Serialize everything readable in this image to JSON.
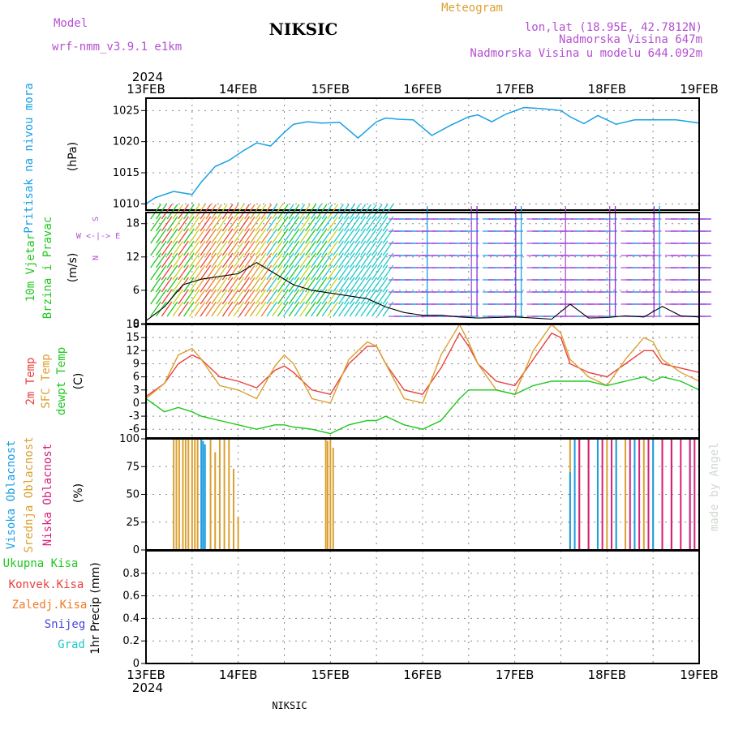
{
  "header": {
    "model_label": "Model",
    "model_value": "wrf-nmm_v3.9.1  e1km",
    "station": "NIKSIC",
    "meteogram": "Meteogram",
    "coords": "lon,lat (18.95E, 42.7812N)",
    "altitude": "Nadmorska Visina 647m",
    "model_altitude": "Nadmorska Visina u modelu 644.092m",
    "footer_station": "NIKSIC",
    "credit": "made by Angel",
    "year": "2024"
  },
  "time_axis": {
    "labels": [
      "13FEB",
      "14FEB",
      "15FEB",
      "16FEB",
      "17FEB",
      "18FEB",
      "19FEB"
    ]
  },
  "colors": {
    "pressure": "#1aa0e6",
    "temp2m": "#e8413c",
    "sfc_temp": "#dba030",
    "dewpt": "#1ec81e",
    "high_cloud": "#1aa0e6",
    "mid_cloud": "#dba030",
    "low_cloud": "#d8207a",
    "purple": "#b450d2",
    "rain_total": "#1ec81e",
    "rain_conv": "#e8413c",
    "rain_frozen": "#f07a28",
    "snow": "#4646dc",
    "hail": "#1ec8c8"
  },
  "panel_labels": {
    "pressure": [
      "Pritisak na nivou mora"
    ],
    "pressure_unit": "(hPa)",
    "wind": [
      "10m Vjetar",
      "Brzina i Pravac"
    ],
    "wind_unit": "(m/s)",
    "compass": [
      "S",
      "W  <-|->  E",
      "N"
    ],
    "temp": [
      "2m Temp",
      "SFC Temp",
      "dewpt Temp"
    ],
    "temp_unit": "(C)",
    "cloud": [
      "Visoka Oblacnost",
      "Srednja Oblacnost",
      "Niska Oblacnost"
    ],
    "cloud_unit": "(%)",
    "precip": [
      "Ukupna Kisa",
      "Konvek.Kisa",
      "Zaledj.Kisa",
      "Snijeg",
      "Grad"
    ],
    "precip_unit": "1hr Precip (mm)"
  },
  "chart_data": [
    {
      "type": "line",
      "name": "pressure",
      "ylim": [
        1009,
        1027
      ],
      "yticks": [
        1010,
        1015,
        1020,
        1025
      ],
      "x_days": [
        0,
        0.1,
        0.3,
        0.5,
        0.6,
        0.75,
        0.9,
        1.05,
        1.2,
        1.35,
        1.5,
        1.6,
        1.75,
        1.9,
        2.1,
        2.3,
        2.5,
        2.6,
        2.75,
        2.9,
        3.1,
        3.3,
        3.5,
        3.6,
        3.75,
        3.9,
        4.1,
        4.3,
        4.5,
        4.6,
        4.75,
        4.9,
        5.1,
        5.3,
        5.5,
        5.6,
        5.75,
        5.9,
        6.0
      ],
      "values": [
        1010,
        1011,
        1012,
        1011.5,
        1013.5,
        1016,
        1017,
        1018.5,
        1019.8,
        1019.3,
        1021.5,
        1022.8,
        1023.2,
        1023,
        1023.1,
        1020.6,
        1023.2,
        1023.8,
        1023.6,
        1023.5,
        1021,
        1022.6,
        1024,
        1024.3,
        1023.2,
        1024.4,
        1025.5,
        1025.3,
        1025,
        1024,
        1022.9,
        1024.2,
        1022.8,
        1023.5,
        1023.5,
        1023.5,
        1023.5,
        1023.2,
        1023
      ]
    },
    {
      "type": "line",
      "name": "wind_speed",
      "ylim": [
        0,
        20
      ],
      "yticks": [
        0,
        6,
        12,
        18
      ],
      "x_days": [
        0,
        0.2,
        0.4,
        0.6,
        0.8,
        1.0,
        1.2,
        1.4,
        1.6,
        1.8,
        2.0,
        2.2,
        2.4,
        2.6,
        2.8,
        3.0,
        3.2,
        3.4,
        3.6,
        3.8,
        4.0,
        4.2,
        4.4,
        4.6,
        4.8,
        5.0,
        5.2,
        5.4,
        5.6,
        5.8,
        6.0
      ],
      "values": [
        0.5,
        3,
        7,
        8,
        8.5,
        9,
        11,
        9,
        7,
        6,
        5.5,
        5,
        4.5,
        3,
        2,
        1.5,
        1.5,
        1.2,
        1,
        1.1,
        1.2,
        1.0,
        0.8,
        3.5,
        1,
        1.1,
        1.4,
        1.2,
        3.1,
        1.4,
        1.2
      ]
    },
    {
      "type": "line",
      "name": "temperature",
      "ylim": [
        -8,
        18
      ],
      "yticks": [
        -6,
        -3,
        0,
        3,
        6,
        9,
        12,
        15,
        18
      ],
      "x_days": [
        0,
        0.2,
        0.35,
        0.5,
        0.6,
        0.8,
        1.0,
        1.2,
        1.4,
        1.5,
        1.6,
        1.8,
        2.0,
        2.2,
        2.4,
        2.5,
        2.6,
        2.8,
        3.0,
        3.2,
        3.4,
        3.5,
        3.6,
        3.8,
        4.0,
        4.2,
        4.4,
        4.5,
        4.6,
        4.8,
        5.0,
        5.2,
        5.4,
        5.5,
        5.6,
        5.8,
        6.0
      ],
      "series": [
        {
          "name": "2m Temp",
          "values": [
            1.5,
            4.5,
            9,
            11,
            10,
            6,
            5,
            3.5,
            7.5,
            8.5,
            7,
            3,
            2,
            9,
            13,
            13,
            9,
            3,
            2,
            8,
            16,
            13,
            9,
            5,
            4,
            10,
            16,
            15,
            9,
            7,
            6,
            9,
            12,
            12,
            9,
            8,
            7
          ]
        },
        {
          "name": "SFC Temp",
          "values": [
            1,
            4.5,
            11,
            12.5,
            10,
            4,
            3,
            1,
            8.5,
            11,
            9,
            1,
            0,
            10,
            14,
            13,
            9,
            1,
            0,
            11,
            18,
            14,
            9,
            3,
            2,
            12,
            18,
            16,
            10,
            6,
            4,
            10,
            15,
            14,
            10,
            7,
            5
          ]
        },
        {
          "name": "dewpt Temp",
          "values": [
            1,
            -2,
            -1,
            -2,
            -3,
            -4,
            -5,
            -6,
            -5,
            -5,
            -5.5,
            -6,
            -7,
            -5,
            -4,
            -4,
            -3,
            -5,
            -6,
            -4,
            1,
            3,
            3,
            3,
            2,
            4,
            5,
            5,
            5,
            5,
            4,
            5,
            6,
            5,
            6,
            5,
            3
          ]
        }
      ]
    },
    {
      "type": "bar",
      "name": "clouds",
      "ylim": [
        0,
        100
      ],
      "yticks": [
        0,
        25,
        50,
        75,
        100
      ],
      "series": [
        {
          "name": "Visoka Oblacnost",
          "x_days": [
            0.6,
            0.62,
            0.64,
            4.6,
            4.65,
            4.9,
            5.1,
            5.3,
            5.5,
            5.7,
            5.9
          ],
          "values": [
            100,
            98,
            95,
            70,
            100,
            100,
            100,
            100,
            100,
            100,
            100
          ]
        },
        {
          "name": "Srednja Oblacnost",
          "x_days": [
            0.3,
            0.33,
            0.36,
            0.4,
            0.43,
            0.46,
            0.5,
            0.53,
            0.56,
            0.6,
            0.7,
            0.75,
            0.8,
            0.85,
            0.9,
            0.95,
            1.0,
            1.95,
            1.97,
            2.0,
            2.03,
            4.6,
            4.65,
            4.7,
            4.8,
            4.9,
            5.0,
            5.1,
            5.2,
            5.3,
            5.4,
            5.5,
            5.6,
            5.7
          ],
          "values": [
            100,
            100,
            100,
            100,
            100,
            100,
            100,
            100,
            100,
            100,
            100,
            88,
            100,
            100,
            100,
            73,
            30,
            100,
            98,
            100,
            92,
            100,
            100,
            100,
            100,
            100,
            100,
            100,
            100,
            100,
            100,
            100,
            100,
            100
          ]
        },
        {
          "name": "Niska Oblacnost",
          "x_days": [
            4.7,
            4.8,
            4.95,
            5.05,
            5.25,
            5.35,
            5.45,
            5.6,
            5.7,
            5.8,
            5.9,
            5.95
          ],
          "values": [
            100,
            100,
            100,
            100,
            100,
            100,
            100,
            100,
            100,
            100,
            100,
            100
          ]
        }
      ]
    },
    {
      "type": "line",
      "name": "precipitation",
      "ylim": [
        0,
        1
      ],
      "yticks": [
        0,
        0.2,
        0.4,
        0.6,
        0.8
      ],
      "x_days": [
        0,
        6
      ],
      "values": [
        0,
        0
      ]
    }
  ]
}
